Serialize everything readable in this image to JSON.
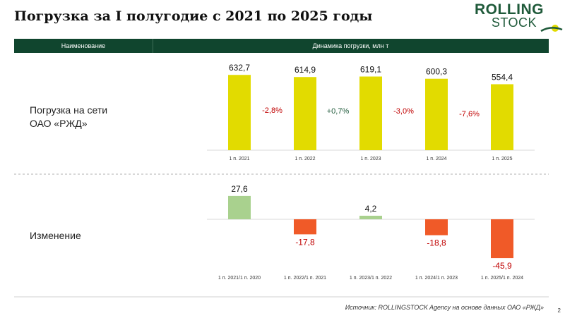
{
  "title": "Погрузка за I полугодие с 2021 по 2025 годы",
  "logo": {
    "line1": "ROLLING",
    "line2": "STOCK"
  },
  "header": {
    "col_name": "Наименование",
    "col_dynamics": "Динамика погрузки, млн т"
  },
  "rows": {
    "loading_label_line1": "Погрузка на сети",
    "loading_label_line2": "ОАО «РЖД»",
    "change_label": "Изменение"
  },
  "colors": {
    "accent": "#10452e",
    "bar_yellow": "#e2db00",
    "bar_green": "#a9d18e",
    "bar_red": "#f05a28",
    "neg_text": "#c00000",
    "pos_text": "#1f5a3a"
  },
  "chart_data": [
    {
      "type": "bar",
      "categories": [
        "1 п. 2021",
        "1 п. 2022",
        "1 п. 2023",
        "1 п. 2024",
        "1 п. 2025"
      ],
      "values": [
        632.7,
        614.9,
        619.1,
        600.3,
        554.4
      ],
      "value_labels": [
        "632,7",
        "614,9",
        "619,1",
        "600,3",
        "554,4"
      ],
      "changes": [
        "-2,8%",
        "+0,7%",
        "-3,0%",
        "-7,6%"
      ]
    },
    {
      "type": "bar",
      "categories": [
        "1 п. 2021/1 п. 2020",
        "1 п. 2022/1 п. 2021",
        "1 п. 2023/1 п. 2022",
        "1 п. 2024/1 п. 2023",
        "1 п. 2025/1 п. 2024"
      ],
      "values": [
        27.6,
        -17.8,
        4.2,
        -18.8,
        -45.9
      ],
      "value_labels": [
        "27,6",
        "-17,8",
        "4,2",
        "-18,8",
        "-45,9"
      ]
    }
  ],
  "source": "Источник: ROLLINGSTOCK Agency на основе данных ОАО «РЖД»",
  "page_number": "2"
}
